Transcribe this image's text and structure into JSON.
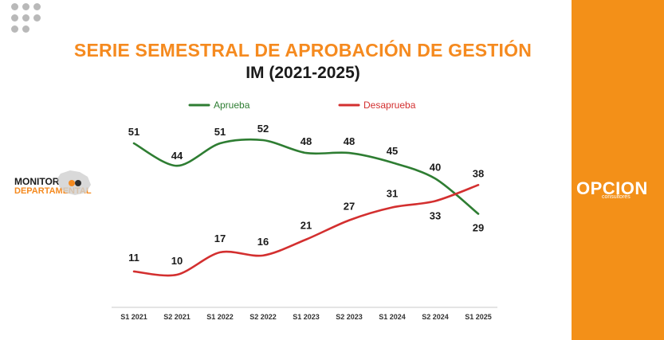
{
  "title": "SERIE SEMESTRAL DE APROBACIÓN DE GESTIÓN",
  "subtitle": "IM (2021-2025)",
  "monitor": {
    "line1": "MONITOR",
    "line2": "DEPARTAMENTAL"
  },
  "brand": {
    "name": "OPCION",
    "sub": "consultores"
  },
  "colors": {
    "accent": "#f58a1f",
    "aprueba": "#2e7d32",
    "desaprueba": "#d32f2f",
    "sidebar": "#f39018"
  },
  "chart_data": {
    "type": "line",
    "title": "SERIE SEMESTRAL DE APROBACIÓN DE GESTIÓN",
    "subtitle": "IM (2021-2025)",
    "categories": [
      "S1 2021",
      "S2 2021",
      "S1 2022",
      "S2 2022",
      "S1 2023",
      "S2 2023",
      "S1 2024",
      "S2 2024",
      "S1 2025"
    ],
    "series": [
      {
        "name": "Aprueba",
        "color": "#2e7d32",
        "values": [
          51,
          44,
          51,
          52,
          48,
          48,
          45,
          40,
          29
        ]
      },
      {
        "name": "Desaprueba",
        "color": "#d32f2f",
        "values": [
          11,
          10,
          17,
          16,
          21,
          27,
          31,
          33,
          38
        ]
      }
    ],
    "ylim": [
      0,
      60
    ],
    "legend": "top-center",
    "grid": false
  }
}
